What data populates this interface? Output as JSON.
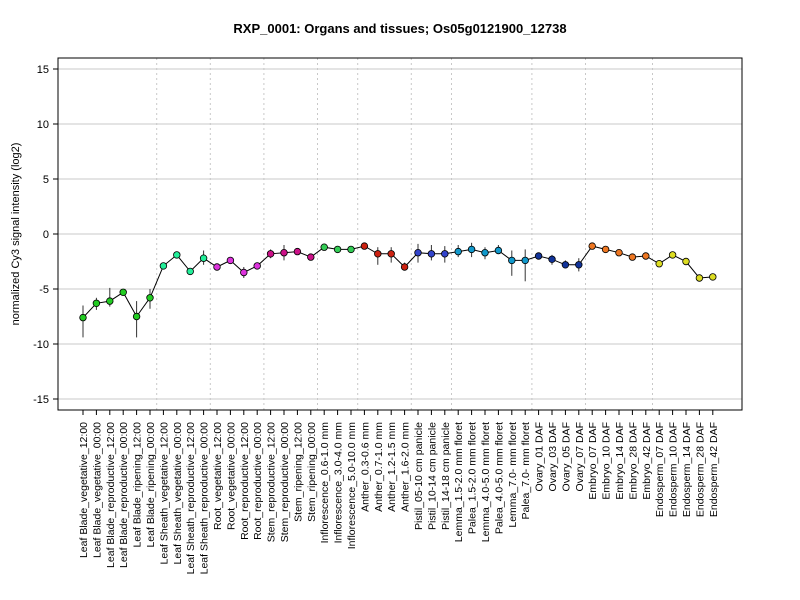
{
  "chart_data": {
    "type": "line",
    "title": "RXP_0001: Organs and tissues; Os05g0121900_12738",
    "xlabel": "",
    "ylabel": "normalized Cy3 signal intensity (log2)",
    "ylim": [
      -16,
      16
    ],
    "yticks": [
      15,
      10,
      5,
      0,
      -5,
      -10,
      -15
    ],
    "grid": true,
    "categories": [
      "Leaf Blade_vegetative_12:00",
      "Leaf Blade_vegetative_00:00",
      "Leaf Blade_reproductive_12:00",
      "Leaf Blade_reproductive_00:00",
      "Leaf Blade_ripening_12:00",
      "Leaf Blade_ripening_00:00",
      "Leaf Sheath_vegetative_12:00",
      "Leaf Sheath_vegetative_00:00",
      "Leaf Sheath_reproductive_12:00",
      "Leaf Sheath_reproductive_00:00",
      "Root_vegetative_12:00",
      "Root_vegetative_00:00",
      "Root_reproductive_12:00",
      "Root_reproductive_00:00",
      "Stem_reproductive_12:00",
      "Stem_reproductive_00:00",
      "Stem_ripening_12:00",
      "Stem_ripening_00:00",
      "Inflorescence_0.6-1.0 mm",
      "Inflorescence_3.0-4.0 mm",
      "Inflorescence_5.0-10.0 mm",
      "Anther_0.3-0.6 mm",
      "Anther_0.7-1.0 mm",
      "Anther_1.2-1.5 mm",
      "Anther_1.6-2.0 mm",
      "Pistil_05-10 cm panicle",
      "Pistil_10-14 cm panicle",
      "Pistil_14-18 cm panicle",
      "Lemma_1.5-2.0 mm floret",
      "Palea_1.5-2.0 mm floret",
      "Lemma_4.0-5.0 mm floret",
      "Palea_4.0-5.0 mm floret",
      "Lemma_7.0- mm floret",
      "Palea_7.0- mm floret",
      "Ovary_01 DAF",
      "Ovary_03 DAF",
      "Ovary_05 DAF",
      "Ovary_07 DAF",
      "Embryo_07 DAF",
      "Embryo_10 DAF",
      "Embryo_14 DAF",
      "Embryo_28 DAF",
      "Embryo_42 DAF",
      "Endosperm_07 DAF",
      "Endosperm_10 DAF",
      "Endosperm_14 DAF",
      "Endosperm_28 DAF",
      "Endosperm_42 DAF"
    ],
    "values": [
      -7.6,
      -6.3,
      -6.1,
      -5.3,
      -7.5,
      -5.8,
      -2.9,
      -1.9,
      -3.4,
      -2.2,
      -3.0,
      -2.4,
      -3.5,
      -2.9,
      -1.8,
      -1.7,
      -1.6,
      -2.1,
      -1.2,
      -1.4,
      -1.4,
      -1.1,
      -1.8,
      -1.8,
      -3.0,
      -1.7,
      -1.8,
      -1.8,
      -1.6,
      -1.4,
      -1.7,
      -1.5,
      -2.4,
      -2.4,
      -2.0,
      -2.3,
      -2.8,
      -2.8,
      -1.1,
      -1.4,
      -1.7,
      -2.1,
      -2.0,
      -2.7,
      -1.9,
      -2.5,
      -4.0,
      -3.9
    ],
    "error": [
      [
        -9.4,
        -6.5
      ],
      [
        -6.9,
        -5.8
      ],
      [
        -6.6,
        -4.9
      ],
      [
        -5.5,
        -5.1
      ],
      [
        -9.4,
        -6.1
      ],
      [
        -6.8,
        -5.0
      ],
      [
        -3.2,
        -2.7
      ],
      [
        -2.1,
        -1.7
      ],
      [
        -3.6,
        -3.2
      ],
      [
        -2.8,
        -1.5
      ],
      [
        -3.3,
        -2.7
      ],
      [
        -2.7,
        -2.2
      ],
      [
        -4.0,
        -3.0
      ],
      [
        -3.2,
        -2.6
      ],
      [
        -2.2,
        -1.4
      ],
      [
        -2.4,
        -1.0
      ],
      [
        -1.9,
        -1.3
      ],
      [
        -2.3,
        -1.9
      ],
      [
        -1.5,
        -0.9
      ],
      [
        -1.7,
        -1.1
      ],
      [
        -1.7,
        -1.1
      ],
      [
        -1.4,
        -0.8
      ],
      [
        -2.8,
        -1.2
      ],
      [
        -2.6,
        -1.2
      ],
      [
        -3.3,
        -2.6
      ],
      [
        -2.6,
        -0.9
      ],
      [
        -2.4,
        -1.0
      ],
      [
        -2.6,
        -1.1
      ],
      [
        -2.1,
        -1.0
      ],
      [
        -2.1,
        -0.8
      ],
      [
        -2.3,
        -1.2
      ],
      [
        -1.8,
        -1.0
      ],
      [
        -3.8,
        -1.5
      ],
      [
        -4.3,
        -1.4
      ],
      [
        -2.3,
        -1.7
      ],
      [
        -2.8,
        -1.9
      ],
      [
        -3.0,
        -2.4
      ],
      [
        -3.4,
        -2.2
      ],
      [
        -1.3,
        -0.9
      ],
      [
        -1.7,
        -1.1
      ],
      [
        -2.0,
        -1.5
      ],
      [
        -2.3,
        -1.9
      ],
      [
        -2.2,
        -1.8
      ],
      [
        -2.9,
        -2.5
      ],
      [
        -2.1,
        -1.6
      ],
      [
        -2.8,
        -2.2
      ],
      [
        -4.2,
        -3.8
      ],
      [
        -4.1,
        -3.7
      ]
    ],
    "colors": [
      "#22cc22",
      "#22cc22",
      "#22cc22",
      "#22cc22",
      "#22cc22",
      "#22cc22",
      "#22ee99",
      "#22ee99",
      "#22ee99",
      "#22ee99",
      "#dd33dd",
      "#dd33dd",
      "#dd33dd",
      "#dd33dd",
      "#cc1188",
      "#cc1188",
      "#cc1188",
      "#cc1188",
      "#33cc55",
      "#33cc55",
      "#33cc55",
      "#cc2211",
      "#cc2211",
      "#cc2211",
      "#cc2211",
      "#3344cc",
      "#3344cc",
      "#3344cc",
      "#1199cc",
      "#1199cc",
      "#1199cc",
      "#1199cc",
      "#1199cc",
      "#1199cc",
      "#113399",
      "#113399",
      "#113399",
      "#113399",
      "#ee7722",
      "#ee7722",
      "#ee7722",
      "#ee7722",
      "#ee7722",
      "#dddd22",
      "#dddd22",
      "#dddd22",
      "#dddd22",
      "#dddd22"
    ],
    "vertical_separators_after": [
      5,
      9,
      13,
      17,
      20,
      24,
      27,
      33,
      37,
      42
    ]
  }
}
